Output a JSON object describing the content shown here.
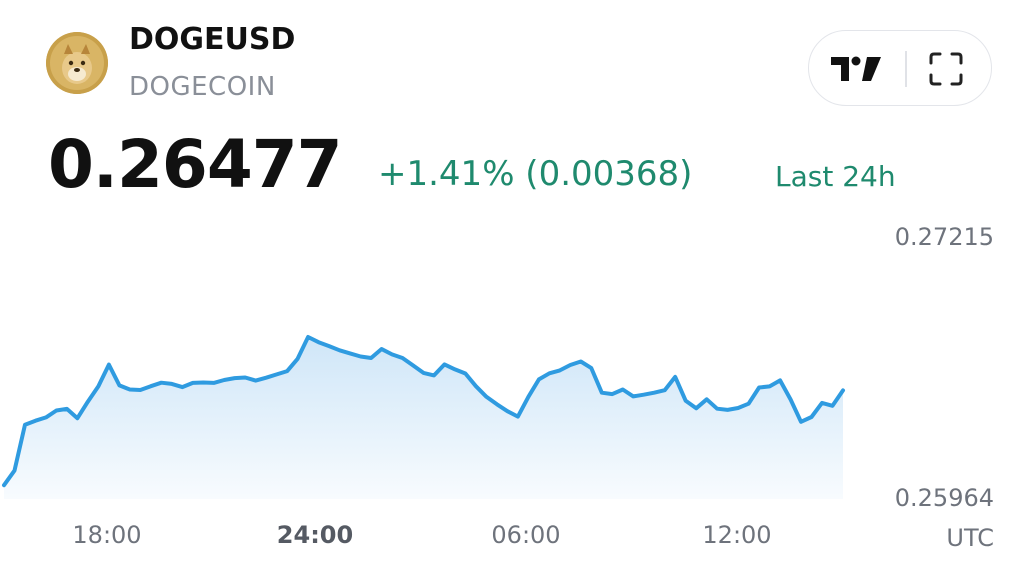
{
  "header": {
    "symbol": "DOGEUSD",
    "name": "DOGECOIN",
    "logo_icon": "doge-coin-icon",
    "tools": [
      "tradingview-logo-icon",
      "fullscreen-icon"
    ]
  },
  "quote": {
    "price": "0.26477",
    "change": "+1.41% (0.00368)",
    "period": "Last 24h",
    "change_color": "#1f8a6e"
  },
  "chart_data": {
    "type": "area",
    "title": "",
    "xlabel": "",
    "ylabel": "",
    "series": [
      {
        "values": [
          0.26021,
          0.26091,
          0.26312,
          0.26331,
          0.26347,
          0.2638,
          0.26388,
          0.26343,
          0.26423,
          0.26497,
          0.26601,
          0.26501,
          0.26481,
          0.26479,
          0.26497,
          0.26514,
          0.26508,
          0.26493,
          0.26513,
          0.26515,
          0.26513,
          0.26527,
          0.26536,
          0.26539,
          0.26524,
          0.26538,
          0.26554,
          0.2657,
          0.26629,
          0.26734,
          0.26709,
          0.2669,
          0.2667,
          0.26655,
          0.2664,
          0.26633,
          0.26676,
          0.2665,
          0.26633,
          0.26597,
          0.26561,
          0.26549,
          0.26602,
          0.26578,
          0.26558,
          0.26497,
          0.26446,
          0.2641,
          0.26377,
          0.26351,
          0.26446,
          0.2653,
          0.26559,
          0.26573,
          0.26599,
          0.26616,
          0.26584,
          0.26466,
          0.26459,
          0.26481,
          0.26448,
          0.26456,
          0.26466,
          0.26478,
          0.26542,
          0.26427,
          0.26391,
          0.26434,
          0.26389,
          0.26383,
          0.26392,
          0.26413,
          0.26491,
          0.26496,
          0.26525,
          0.26433,
          0.26326,
          0.26349,
          0.26417,
          0.26403,
          0.26477
        ],
        "time_fraction_note": ""
      }
    ],
    "x_ticks": [
      "18:00",
      "24:00",
      "06:00",
      "12:00"
    ],
    "x_tick_highlight": "24:00",
    "x_unit_label": "UTC",
    "y_ticks": [
      "0.27215",
      "0.25964"
    ],
    "ylim": [
      0.25964,
      0.27215
    ],
    "line_color": "#2f9be0",
    "fill_color": "#d6ebf9",
    "grid": false
  }
}
